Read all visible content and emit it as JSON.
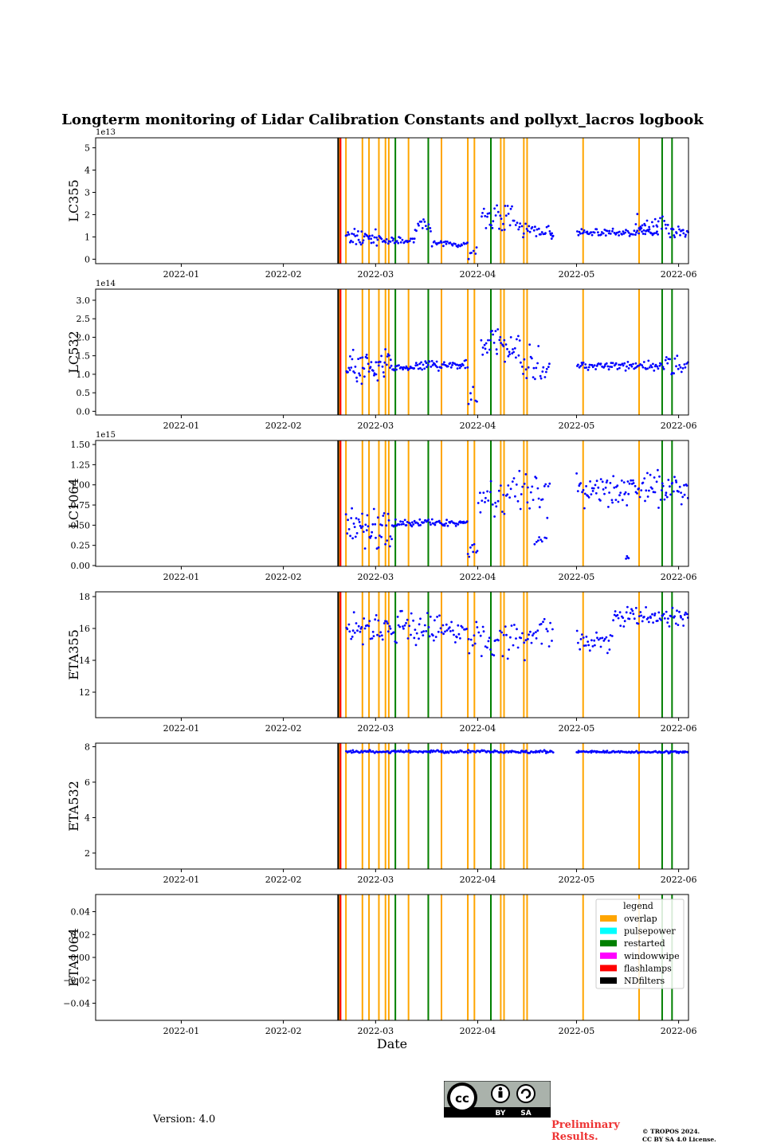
{
  "figure_title": "Longterm monitoring of Lidar Calibration Constants and pollyxt_lacros logbook",
  "version_text": "Version: 4.0",
  "preliminary_text": "Preliminary Results.",
  "copyright_line1": "© TROPOS 2024.",
  "copyright_line2": "CC BY SA 4.0 License.",
  "license_badge": {
    "icon": "cc-by-sa-icon",
    "labels": [
      "BY",
      "SA"
    ]
  },
  "colors": {
    "points": "#0000ff",
    "overlap": "#ffa500",
    "pulsepower": "#00ffff",
    "restarted": "#008000",
    "windowwipe": "#ff00ff",
    "flashlamps": "#ff0000",
    "NDfilters": "#000000"
  },
  "chart_data": {
    "type": "scatter",
    "title": "Longterm monitoring of Lidar Calibration Constants and pollyxt_lacros logbook",
    "xlabel": "Date",
    "xlim": [
      "2021-12-06",
      "2022-06-04"
    ],
    "x_ticks": [
      "2022-01-01",
      "2022-02-01",
      "2022-03-01",
      "2022-04-01",
      "2022-05-01",
      "2022-06-01"
    ],
    "x_tick_labels": [
      "2022-01",
      "2022-02",
      "2022-03",
      "2022-04",
      "2022-05",
      "2022-06"
    ],
    "logbook_events": {
      "flashlamps": [
        "2022-02-18"
      ],
      "NDfilters": [
        "2022-02-18"
      ],
      "overlap": [
        "2022-02-18",
        "2022-02-20",
        "2022-02-25",
        "2022-02-27",
        "2022-03-02",
        "2022-03-04",
        "2022-03-05",
        "2022-03-11",
        "2022-03-17",
        "2022-03-21",
        "2022-03-29",
        "2022-03-31",
        "2022-04-08",
        "2022-04-09",
        "2022-04-15",
        "2022-04-16",
        "2022-05-03",
        "2022-05-20"
      ],
      "restarted": [
        "2022-03-07",
        "2022-03-17",
        "2022-04-05",
        "2022-05-27",
        "2022-05-30"
      ],
      "pulsepower": [],
      "windowwipe": []
    },
    "legend": {
      "title": "legend",
      "position": "upper right of bottom panel",
      "entries": [
        "overlap",
        "pulsepower",
        "restarted",
        "windowwipe",
        "flashlamps",
        "NDfilters"
      ]
    },
    "panels": [
      {
        "ylabel": "LC355",
        "ylim": [
          -0.2,
          5.45
        ],
        "offset_text": "1e13",
        "y_ticks": [
          0,
          1,
          2,
          3,
          4,
          5
        ],
        "y_tick_labels": [
          "0",
          "1",
          "2",
          "3",
          "4",
          "5"
        ],
        "series": [
          {
            "segments": [
              {
                "from": "2022-02-20",
                "to": "2022-03-03",
                "n": 40,
                "base": 0.95,
                "spread": 0.5
              },
              {
                "from": "2022-03-03",
                "to": "2022-03-13",
                "n": 30,
                "base": 0.8,
                "spread": 0.2
              },
              {
                "from": "2022-03-13",
                "to": "2022-03-18",
                "n": 14,
                "base": 1.55,
                "spread": 0.3
              },
              {
                "from": "2022-03-18",
                "to": "2022-03-29",
                "n": 30,
                "base": 0.68,
                "spread": 0.15
              },
              {
                "from": "2022-03-29",
                "to": "2022-04-01",
                "n": 6,
                "base": 0.35,
                "spread": 0.4
              },
              {
                "from": "2022-04-02",
                "to": "2022-04-12",
                "n": 30,
                "base": 1.9,
                "spread": 0.7
              },
              {
                "from": "2022-04-12",
                "to": "2022-04-23",
                "n": 30,
                "base": 1.35,
                "spread": 0.5
              },
              {
                "from": "2022-04-23",
                "to": "2022-04-24",
                "n": 6,
                "base": 1.05,
                "spread": 0.15
              },
              {
                "from": "2022-05-01",
                "to": "2022-05-26",
                "n": 75,
                "base": 1.2,
                "spread": 0.18
              },
              {
                "from": "2022-05-19",
                "to": "2022-05-29",
                "n": 25,
                "base": 1.6,
                "spread": 0.5
              },
              {
                "from": "2022-05-29",
                "to": "2022-06-04",
                "n": 20,
                "base": 1.25,
                "spread": 0.3
              }
            ]
          }
        ]
      },
      {
        "ylabel": "LC532",
        "ylim": [
          -0.1,
          3.3
        ],
        "offset_text": "1e14",
        "y_ticks": [
          0,
          0.5,
          1.0,
          1.5,
          2.0,
          2.5,
          3.0
        ],
        "y_tick_labels": [
          "0.0",
          "0.5",
          "1.0",
          "1.5",
          "2.0",
          "2.5",
          "3.0"
        ],
        "series": [
          {
            "segments": [
              {
                "from": "2022-02-20",
                "to": "2022-03-06",
                "n": 55,
                "base": 1.2,
                "spread": 0.55
              },
              {
                "from": "2022-03-06",
                "to": "2022-03-13",
                "n": 22,
                "base": 1.17,
                "spread": 0.08
              },
              {
                "from": "2022-03-13",
                "to": "2022-03-29",
                "n": 55,
                "base": 1.25,
                "spread": 0.18
              },
              {
                "from": "2022-03-29",
                "to": "2022-04-01",
                "n": 6,
                "base": 0.4,
                "spread": 0.5
              },
              {
                "from": "2022-04-02",
                "to": "2022-04-14",
                "n": 40,
                "base": 1.8,
                "spread": 0.5
              },
              {
                "from": "2022-04-14",
                "to": "2022-04-23",
                "n": 25,
                "base": 1.25,
                "spread": 0.6
              },
              {
                "from": "2022-05-01",
                "to": "2022-05-26",
                "n": 75,
                "base": 1.22,
                "spread": 0.15
              },
              {
                "from": "2022-05-26",
                "to": "2022-06-04",
                "n": 25,
                "base": 1.25,
                "spread": 0.3
              }
            ]
          }
        ]
      },
      {
        "ylabel": "LC1064",
        "ylim": [
          -0.01,
          1.55
        ],
        "offset_text": "1e15",
        "y_ticks": [
          0,
          0.25,
          0.5,
          0.75,
          1.0,
          1.25,
          1.5
        ],
        "y_tick_labels": [
          "0.00",
          "0.25",
          "0.50",
          "0.75",
          "1.00",
          "1.25",
          "1.50"
        ],
        "series": [
          {
            "segments": [
              {
                "from": "2022-02-20",
                "to": "2022-03-06",
                "n": 50,
                "base": 0.45,
                "spread": 0.3
              },
              {
                "from": "2022-03-06",
                "to": "2022-03-29",
                "n": 75,
                "base": 0.53,
                "spread": 0.05
              },
              {
                "from": "2022-03-29",
                "to": "2022-04-01",
                "n": 8,
                "base": 0.2,
                "spread": 0.15
              },
              {
                "from": "2022-04-01",
                "to": "2022-04-23",
                "n": 55,
                "base": 0.85,
                "spread": 0.35
              },
              {
                "from": "2022-04-18",
                "to": "2022-04-22",
                "n": 8,
                "base": 0.3,
                "spread": 0.1
              },
              {
                "from": "2022-05-01",
                "to": "2022-06-04",
                "n": 110,
                "base": 0.95,
                "spread": 0.25
              },
              {
                "from": "2022-05-16",
                "to": "2022-05-17",
                "n": 4,
                "base": 0.09,
                "spread": 0.04
              }
            ]
          }
        ]
      },
      {
        "ylabel": "ETA355",
        "ylim": [
          10.4,
          18.3
        ],
        "offset_text": "",
        "y_ticks": [
          12,
          14,
          16,
          18
        ],
        "y_tick_labels": [
          "12",
          "14",
          "16",
          "18"
        ],
        "series": [
          {
            "segments": [
              {
                "from": "2022-02-20",
                "to": "2022-03-29",
                "n": 110,
                "base": 16.0,
                "spread": 1.2
              },
              {
                "from": "2022-03-29",
                "to": "2022-04-16",
                "n": 45,
                "base": 15.3,
                "spread": 1.5
              },
              {
                "from": "2022-04-16",
                "to": "2022-04-24",
                "n": 20,
                "base": 15.8,
                "spread": 1.0
              },
              {
                "from": "2022-05-01",
                "to": "2022-05-12",
                "n": 30,
                "base": 15.2,
                "spread": 0.8
              },
              {
                "from": "2022-05-12",
                "to": "2022-06-04",
                "n": 70,
                "base": 16.7,
                "spread": 0.7
              }
            ]
          }
        ]
      },
      {
        "ylabel": "ETA532",
        "ylim": [
          1.1,
          8.2
        ],
        "offset_text": "",
        "y_ticks": [
          2,
          4,
          6,
          8
        ],
        "y_tick_labels": [
          "2",
          "4",
          "6",
          "8"
        ],
        "series": [
          {
            "segments": [
              {
                "from": "2022-02-20",
                "to": "2022-04-24",
                "n": 190,
                "base": 7.72,
                "spread": 0.1
              },
              {
                "from": "2022-05-01",
                "to": "2022-06-04",
                "n": 110,
                "base": 7.7,
                "spread": 0.08
              }
            ]
          }
        ]
      },
      {
        "ylabel": "ETA1064",
        "ylim": [
          -0.055,
          0.055
        ],
        "offset_text": "",
        "y_ticks": [
          -0.04,
          -0.02,
          0,
          0.02,
          0.04
        ],
        "y_tick_labels": [
          "−0.04",
          "−0.02",
          "0.00",
          "0.02",
          "0.04"
        ],
        "series": []
      }
    ]
  }
}
